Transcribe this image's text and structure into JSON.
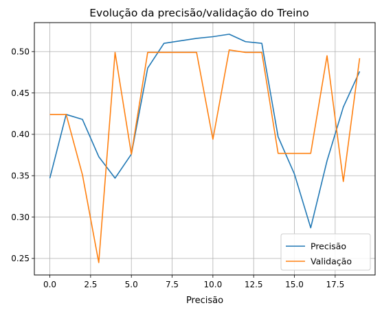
{
  "chart_data": {
    "type": "line",
    "title": "Evolução da precisão/validação do Treino",
    "xlabel": "Precisão",
    "ylabel": "",
    "xlim": [
      -0.95,
      19.95
    ],
    "ylim": [
      0.23,
      0.535
    ],
    "x_ticks": [
      0.0,
      2.5,
      5.0,
      7.5,
      10.0,
      12.5,
      15.0,
      17.5
    ],
    "x_tick_labels": [
      "0.0",
      "2.5",
      "5.0",
      "7.5",
      "10.0",
      "12.5",
      "15.0",
      "17.5"
    ],
    "y_ticks": [
      0.25,
      0.3,
      0.35,
      0.4,
      0.45,
      0.5
    ],
    "y_tick_labels": [
      "0.25",
      "0.30",
      "0.35",
      "0.40",
      "0.45",
      "0.50"
    ],
    "grid": true,
    "legend_position": "lower-right",
    "x": [
      0,
      1,
      2,
      3,
      4,
      5,
      6,
      7,
      8,
      9,
      10,
      11,
      12,
      13,
      14,
      15,
      16,
      17,
      18,
      19
    ],
    "series": [
      {
        "name": "Precisão",
        "color": "#1f77b4",
        "values": [
          0.347,
          0.424,
          0.418,
          0.373,
          0.347,
          0.376,
          0.48,
          0.51,
          0.513,
          0.516,
          0.518,
          0.521,
          0.512,
          0.51,
          0.397,
          0.352,
          0.287,
          0.368,
          0.433,
          0.476
        ]
      },
      {
        "name": "Validação",
        "color": "#ff7f0e",
        "values": [
          0.424,
          0.424,
          0.351,
          0.245,
          0.499,
          0.376,
          0.499,
          0.499,
          0.499,
          0.499,
          0.394,
          0.502,
          0.499,
          0.499,
          0.377,
          0.377,
          0.377,
          0.495,
          0.343,
          0.492
        ]
      }
    ]
  }
}
